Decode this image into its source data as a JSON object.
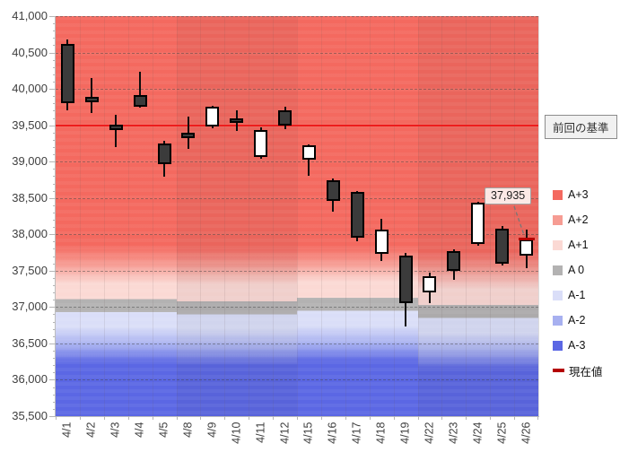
{
  "chart_data": {
    "type": "candlestick",
    "title": "",
    "grid": "dashed-horizontal-major",
    "legend_position": "right",
    "y_axis": {
      "min": 35500,
      "max": 41000,
      "major_step": 500,
      "minor_step": 100,
      "tick_labels": [
        "41,000",
        "40,500",
        "40,000",
        "39,500",
        "39,000",
        "38,500",
        "38,000",
        "37,500",
        "37,000",
        "36,500",
        "36,000",
        "35,500"
      ]
    },
    "x_axis": {
      "labels": [
        "4/1",
        "4/2",
        "4/3",
        "4/4",
        "4/5",
        "4/8",
        "4/9",
        "4/10",
        "4/11",
        "4/12",
        "4/15",
        "4/16",
        "4/17",
        "4/18",
        "4/19",
        "4/22",
        "4/23",
        "4/24",
        "4/25",
        "4/26"
      ]
    },
    "baseline": {
      "value": 39500,
      "label": "前回の基準",
      "color": "#ee1c1c"
    },
    "current_value": {
      "value": 37935,
      "label": "37,935",
      "date": "4/26",
      "marker_color": "#b40000"
    },
    "candles": [
      {
        "date": "4/1",
        "open": 40620,
        "high": 40680,
        "low": 39700,
        "close": 39800,
        "direction": "down"
      },
      {
        "date": "4/2",
        "open": 39890,
        "high": 40150,
        "low": 39670,
        "close": 39820,
        "direction": "down"
      },
      {
        "date": "4/3",
        "open": 39510,
        "high": 39640,
        "low": 39200,
        "close": 39430,
        "direction": "down"
      },
      {
        "date": "4/4",
        "open": 39920,
        "high": 40240,
        "low": 39740,
        "close": 39760,
        "direction": "down"
      },
      {
        "date": "4/5",
        "open": 39250,
        "high": 39290,
        "low": 38790,
        "close": 38960,
        "direction": "down"
      },
      {
        "date": "4/8",
        "open": 39400,
        "high": 39620,
        "low": 39180,
        "close": 39320,
        "direction": "down"
      },
      {
        "date": "4/9",
        "open": 39480,
        "high": 39770,
        "low": 39460,
        "close": 39760,
        "direction": "up"
      },
      {
        "date": "4/10",
        "open": 39590,
        "high": 39700,
        "low": 39420,
        "close": 39530,
        "direction": "down"
      },
      {
        "date": "4/11",
        "open": 39060,
        "high": 39470,
        "low": 39040,
        "close": 39440,
        "direction": "up"
      },
      {
        "date": "4/12",
        "open": 39700,
        "high": 39760,
        "low": 39450,
        "close": 39500,
        "direction": "down"
      },
      {
        "date": "4/15",
        "open": 39030,
        "high": 39240,
        "low": 38800,
        "close": 39230,
        "direction": "up"
      },
      {
        "date": "4/16",
        "open": 38740,
        "high": 38770,
        "low": 38310,
        "close": 38460,
        "direction": "down"
      },
      {
        "date": "4/17",
        "open": 38580,
        "high": 38600,
        "low": 37910,
        "close": 37950,
        "direction": "down"
      },
      {
        "date": "4/18",
        "open": 37730,
        "high": 38210,
        "low": 37630,
        "close": 38060,
        "direction": "up"
      },
      {
        "date": "4/19",
        "open": 37710,
        "high": 37740,
        "low": 36730,
        "close": 37050,
        "direction": "down"
      },
      {
        "date": "4/22",
        "open": 37200,
        "high": 37470,
        "low": 37050,
        "close": 37420,
        "direction": "up"
      },
      {
        "date": "4/23",
        "open": 37770,
        "high": 37790,
        "low": 37380,
        "close": 37500,
        "direction": "down"
      },
      {
        "date": "4/24",
        "open": 37870,
        "high": 38450,
        "low": 37840,
        "close": 38440,
        "direction": "up"
      },
      {
        "date": "4/25",
        "open": 38080,
        "high": 38120,
        "low": 37570,
        "close": 37600,
        "direction": "down"
      },
      {
        "date": "4/26",
        "open": 37710,
        "high": 38070,
        "low": 37530,
        "close": 37935,
        "direction": "up",
        "is_current": true
      }
    ],
    "candle_colors": {
      "down_fill": "#3b3b3b",
      "up_fill": "#ffffff",
      "border": "#000000"
    },
    "band_colors": {
      "a3p": "#f4695f",
      "a2p": "#f69c93",
      "a1p": "#fbd9d4",
      "a0": "#b3b2b2",
      "a1m": "#dadef8",
      "a2m": "#a7b0f0",
      "a3m": "#5b67e4"
    },
    "band_segments": [
      {
        "dates": "4/1-4/5",
        "cols": [
          0,
          5
        ],
        "boundaries": [
          37850,
          37320,
          37110,
          36930,
          36730,
          36230
        ],
        "shaded": false
      },
      {
        "dates": "4/8-4/12",
        "cols": [
          5,
          10
        ],
        "boundaries": [
          37820,
          37300,
          37080,
          36900,
          36700,
          36200
        ],
        "shaded": true
      },
      {
        "dates": "4/15-4/19",
        "cols": [
          10,
          15
        ],
        "boundaries": [
          37840,
          37350,
          37130,
          36950,
          36750,
          36250
        ],
        "shaded": false
      },
      {
        "dates": "4/22-4/26",
        "cols": [
          15,
          20
        ],
        "boundaries": [
          37760,
          37250,
          37030,
          36850,
          36650,
          36150
        ],
        "shaded": true
      }
    ],
    "legend": [
      {
        "label": "A+3",
        "color": "#f4695f",
        "type": "square"
      },
      {
        "label": "A+2",
        "color": "#f69c93",
        "type": "square"
      },
      {
        "label": "A+1",
        "color": "#fbd9d4",
        "type": "square"
      },
      {
        "label": "A 0",
        "color": "#b3b2b2",
        "type": "square"
      },
      {
        "label": "A-1",
        "color": "#dadef8",
        "type": "square"
      },
      {
        "label": "A-2",
        "color": "#a7b0f0",
        "type": "square"
      },
      {
        "label": "A-3",
        "color": "#5b67e4",
        "type": "square"
      },
      {
        "label": "現在値",
        "color": "#b40000",
        "type": "dash"
      }
    ]
  }
}
